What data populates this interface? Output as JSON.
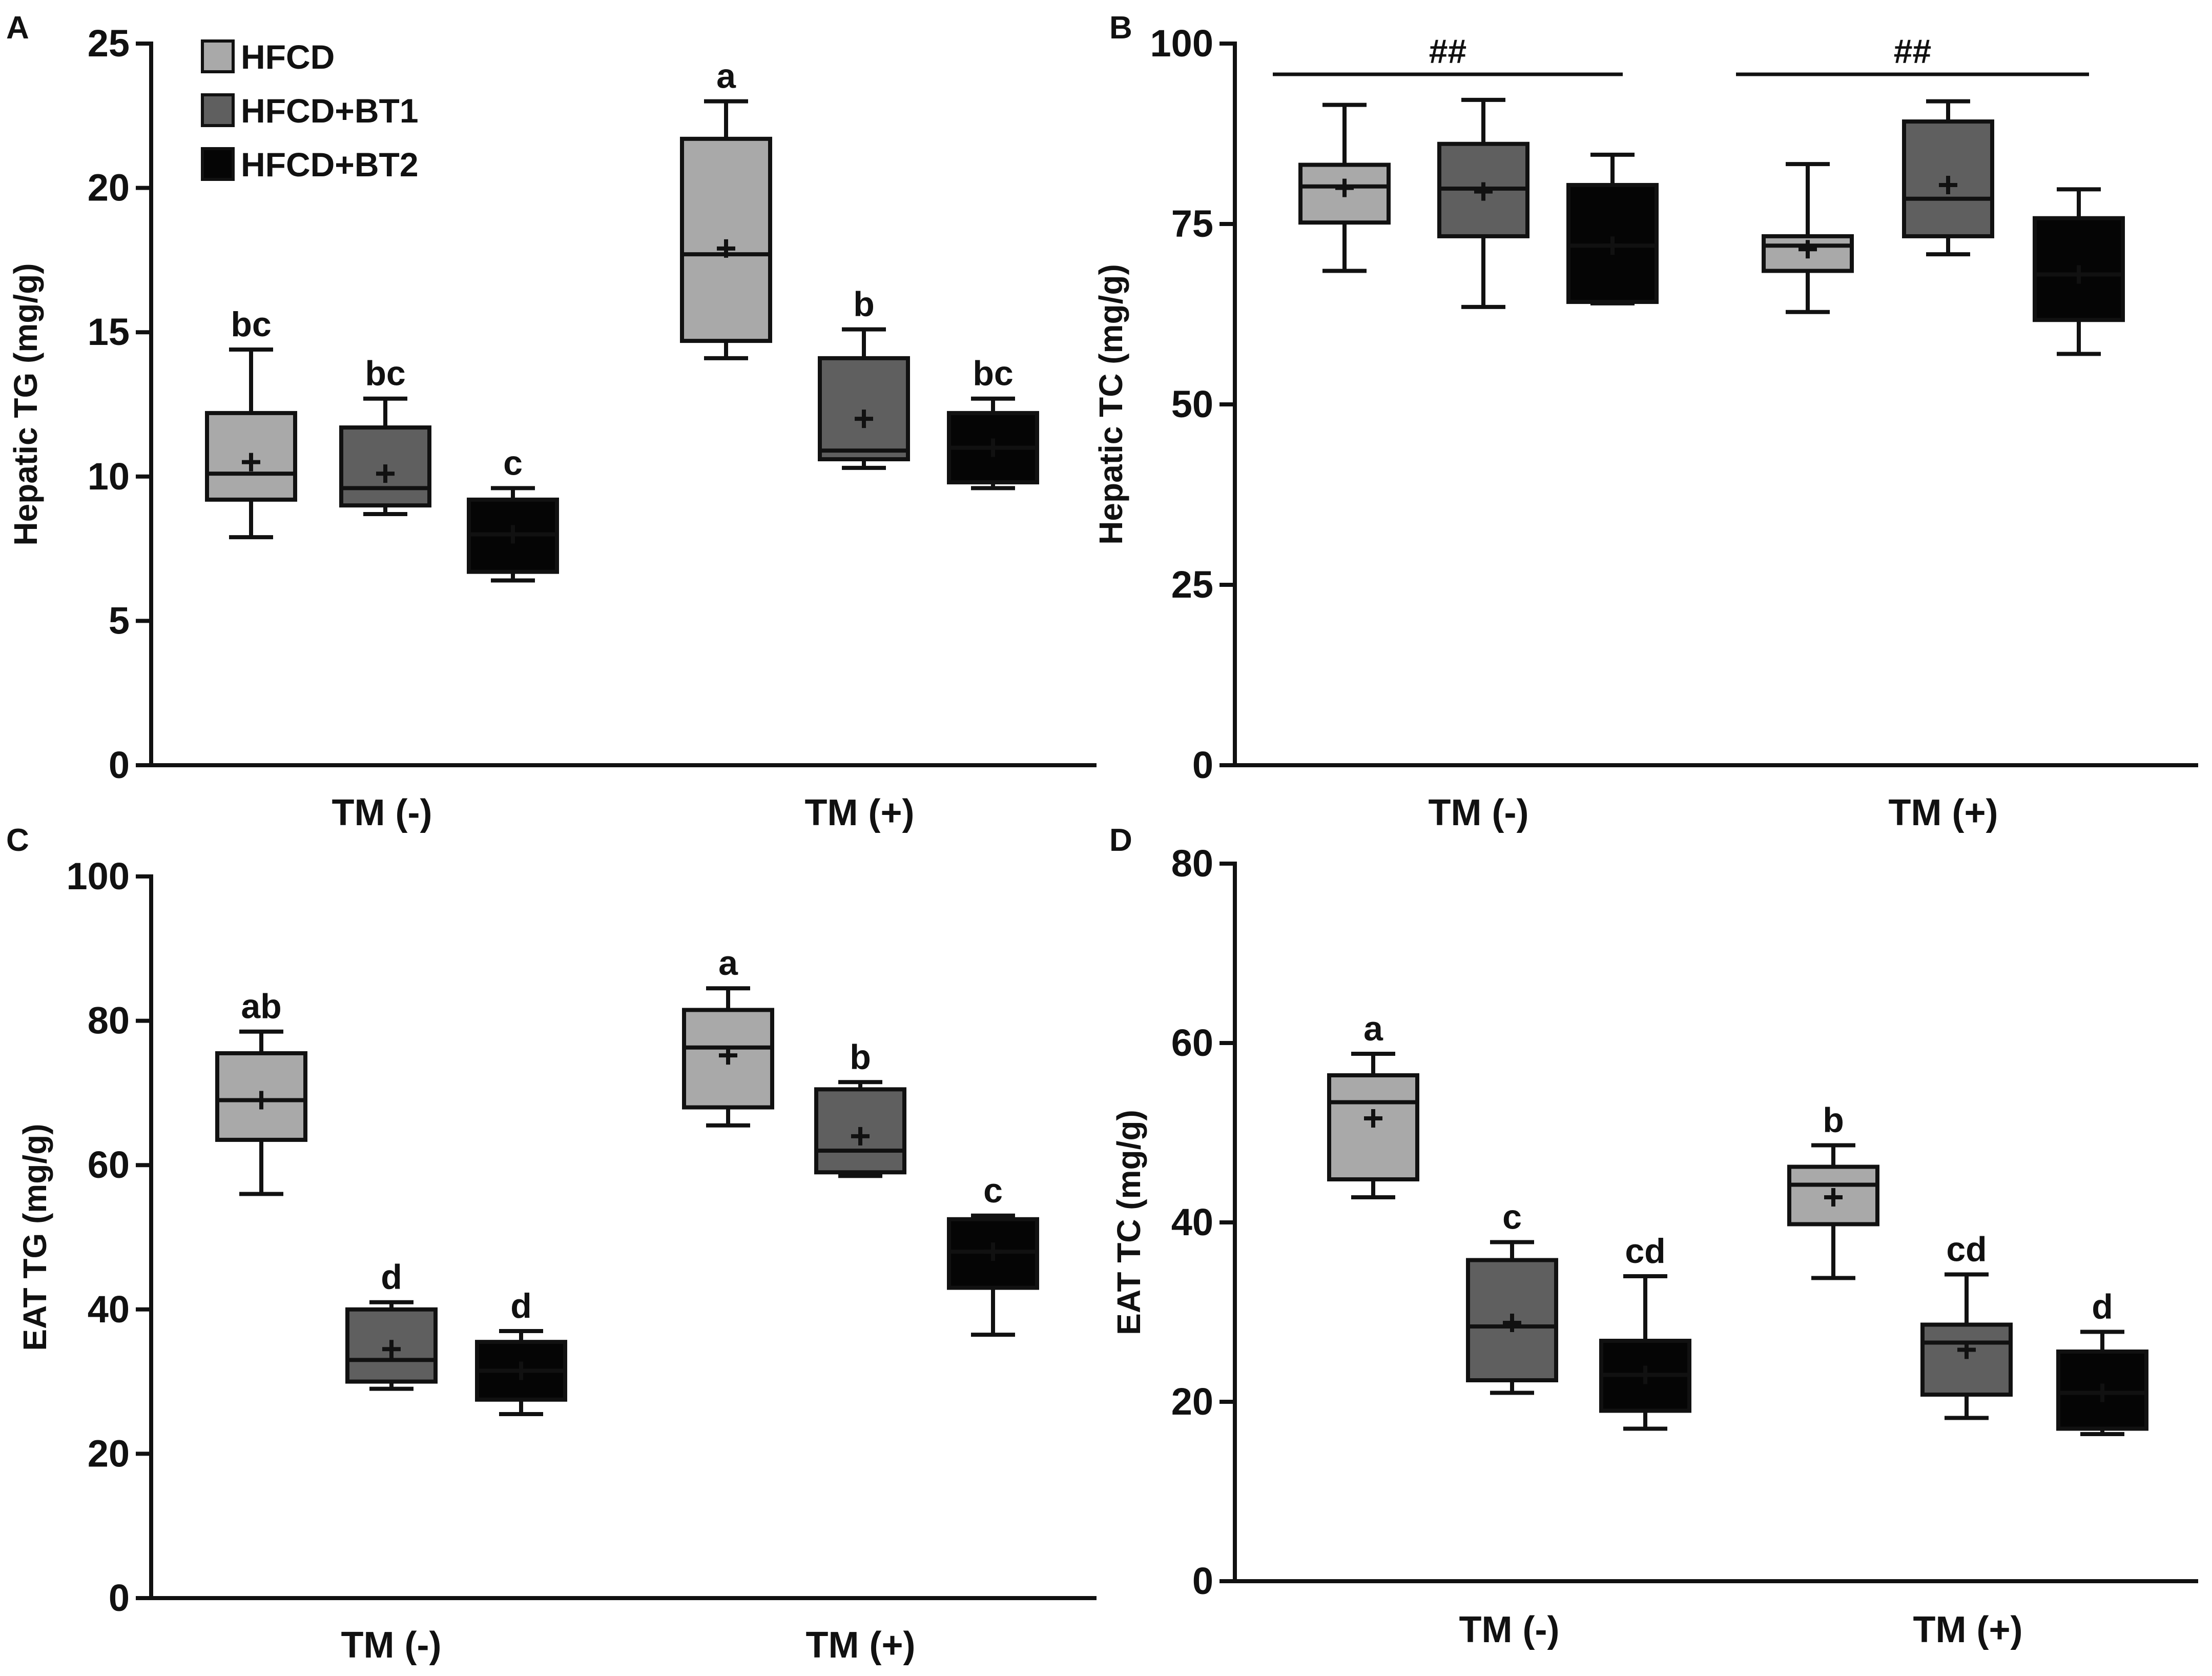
{
  "chart_data": [
    {
      "panel": "A",
      "type": "box",
      "ylabel": "Hepatic TG (mg/g)",
      "ylim": [
        0,
        25
      ],
      "yticks": [
        0,
        5,
        10,
        15,
        20,
        25
      ],
      "categories": [
        "TM (-)",
        "TM (+)"
      ],
      "legend": {
        "entries": [
          {
            "label": "HFCD",
            "color": "#a9a9a9"
          },
          {
            "label": "HFCD+BT1",
            "color": "#5f5f5f"
          },
          {
            "label": "HFCD+BT2",
            "color": "#050505"
          }
        ]
      },
      "series": [
        {
          "name": "HFCD",
          "color": "#a9a9a9",
          "boxes": [
            {
              "whisker_low": 7.9,
              "q1": 9.2,
              "median": 10.1,
              "q3": 12.2,
              "whisker_high": 14.4,
              "mean": 10.5,
              "letter": "bc"
            },
            {
              "whisker_low": 14.1,
              "q1": 14.7,
              "median": 17.7,
              "q3": 21.7,
              "whisker_high": 23.0,
              "mean": 17.9,
              "letter": "a"
            }
          ]
        },
        {
          "name": "HFCD+BT1",
          "color": "#5f5f5f",
          "boxes": [
            {
              "whisker_low": 8.7,
              "q1": 9.0,
              "median": 9.6,
              "q3": 11.7,
              "whisker_high": 12.7,
              "mean": 10.1,
              "letter": "bc"
            },
            {
              "whisker_low": 10.3,
              "q1": 10.6,
              "median": 10.9,
              "q3": 14.1,
              "whisker_high": 15.1,
              "mean": 12.0,
              "letter": "b"
            }
          ]
        },
        {
          "name": "HFCD+BT2",
          "color": "#050505",
          "boxes": [
            {
              "whisker_low": 6.4,
              "q1": 6.7,
              "median": 8.0,
              "q3": 9.2,
              "whisker_high": 9.6,
              "mean": 8.0,
              "letter": "c"
            },
            {
              "whisker_low": 9.6,
              "q1": 9.8,
              "median": 11.0,
              "q3": 12.2,
              "whisker_high": 12.7,
              "mean": 11.0,
              "letter": "bc"
            }
          ]
        }
      ]
    },
    {
      "panel": "B",
      "type": "box",
      "ylabel": "Hepatic TC (mg/g)",
      "ylim": [
        0,
        100
      ],
      "yticks": [
        0,
        25,
        50,
        75,
        100
      ],
      "categories": [
        "TM (-)",
        "TM (+)"
      ],
      "group_annotations": [
        "##",
        "##"
      ],
      "series": [
        {
          "name": "HFCD",
          "color": "#a9a9a9",
          "boxes": [
            {
              "whisker_low": 68.5,
              "q1": 75.2,
              "median": 80.2,
              "q3": 83.2,
              "whisker_high": 91.5,
              "mean": 80.0,
              "letter": ""
            },
            {
              "whisker_low": 62.8,
              "q1": 68.5,
              "median": 72.0,
              "q3": 73.3,
              "whisker_high": 83.3,
              "mean": 71.5,
              "letter": ""
            }
          ]
        },
        {
          "name": "HFCD+BT1",
          "color": "#5f5f5f",
          "boxes": [
            {
              "whisker_low": 63.5,
              "q1": 73.3,
              "median": 79.9,
              "q3": 86.1,
              "whisker_high": 92.2,
              "mean": 79.5,
              "letter": ""
            },
            {
              "whisker_low": 70.8,
              "q1": 73.3,
              "median": 78.5,
              "q3": 89.2,
              "whisker_high": 92.0,
              "mean": 80.4,
              "letter": ""
            }
          ]
        },
        {
          "name": "HFCD+BT2",
          "color": "#050505",
          "boxes": [
            {
              "whisker_low": 64.0,
              "q1": 64.2,
              "median": 72.0,
              "q3": 80.4,
              "whisker_high": 84.6,
              "mean": 72.0,
              "letter": ""
            },
            {
              "whisker_low": 57.0,
              "q1": 61.7,
              "median": 68.0,
              "q3": 75.8,
              "whisker_high": 79.8,
              "mean": 68.0,
              "letter": ""
            }
          ]
        }
      ]
    },
    {
      "panel": "C",
      "type": "box",
      "ylabel": "EAT TG (mg/g)",
      "ylim": [
        0,
        100
      ],
      "yticks": [
        0,
        20,
        40,
        60,
        80,
        100
      ],
      "categories": [
        "TM (-)",
        "TM (+)"
      ],
      "series": [
        {
          "name": "HFCD",
          "color": "#a9a9a9",
          "boxes": [
            {
              "whisker_low": 56.0,
              "q1": 63.5,
              "median": 69.0,
              "q3": 75.5,
              "whisker_high": 78.5,
              "mean": 69.0,
              "letter": "ab"
            },
            {
              "whisker_low": 65.5,
              "q1": 68.0,
              "median": 76.3,
              "q3": 81.5,
              "whisker_high": 84.5,
              "mean": 75.2,
              "letter": "a"
            }
          ]
        },
        {
          "name": "HFCD+BT1",
          "color": "#5f5f5f",
          "boxes": [
            {
              "whisker_low": 29.0,
              "q1": 30.0,
              "median": 33.0,
              "q3": 40.0,
              "whisker_high": 41.0,
              "mean": 34.5,
              "letter": "d"
            },
            {
              "whisker_low": 58.5,
              "q1": 59.0,
              "median": 62.0,
              "q3": 70.5,
              "whisker_high": 71.5,
              "mean": 64.0,
              "letter": "b"
            }
          ]
        },
        {
          "name": "HFCD+BT2",
          "color": "#050505",
          "boxes": [
            {
              "whisker_low": 25.5,
              "q1": 27.5,
              "median": 31.5,
              "q3": 35.5,
              "whisker_high": 37.0,
              "mean": 31.5,
              "letter": "d"
            },
            {
              "whisker_low": 36.5,
              "q1": 43.0,
              "median": 48.0,
              "q3": 52.5,
              "whisker_high": 53.0,
              "mean": 48.0,
              "letter": "c"
            }
          ]
        }
      ]
    },
    {
      "panel": "D",
      "type": "box",
      "ylabel": "EAT TC (mg/g)",
      "ylim": [
        0,
        80
      ],
      "yticks": [
        0,
        20,
        40,
        60,
        80
      ],
      "categories": [
        "TM (-)",
        "TM (+)"
      ],
      "series": [
        {
          "name": "HFCD",
          "color": "#a9a9a9",
          "boxes": [
            {
              "whisker_low": 42.8,
              "q1": 44.8,
              "median": 53.4,
              "q3": 56.4,
              "whisker_high": 58.8,
              "mean": 51.6,
              "letter": "a"
            },
            {
              "whisker_low": 33.8,
              "q1": 39.8,
              "median": 44.2,
              "q3": 46.2,
              "whisker_high": 48.6,
              "mean": 42.8,
              "letter": "b"
            }
          ]
        },
        {
          "name": "HFCD+BT1",
          "color": "#5f5f5f",
          "boxes": [
            {
              "whisker_low": 21.0,
              "q1": 22.4,
              "median": 28.4,
              "q3": 35.8,
              "whisker_high": 37.8,
              "mean": 28.8,
              "letter": "c"
            },
            {
              "whisker_low": 18.2,
              "q1": 20.8,
              "median": 26.6,
              "q3": 28.6,
              "whisker_high": 34.2,
              "mean": 25.8,
              "letter": "cd"
            }
          ]
        },
        {
          "name": "HFCD+BT2",
          "color": "#050505",
          "boxes": [
            {
              "whisker_low": 17.0,
              "q1": 19.0,
              "median": 23.0,
              "q3": 26.8,
              "whisker_high": 34.0,
              "mean": 23.0,
              "letter": "cd"
            },
            {
              "whisker_low": 16.4,
              "q1": 17.0,
              "median": 21.0,
              "q3": 25.6,
              "whisker_high": 27.8,
              "mean": 21.0,
              "letter": "d"
            }
          ]
        }
      ]
    }
  ]
}
